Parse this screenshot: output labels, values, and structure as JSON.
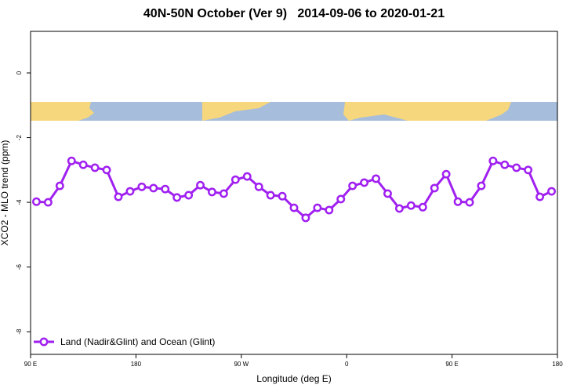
{
  "chart_data": {
    "type": "line",
    "title": "40N-50N October (Ver 9)   2014-09-06 to 2020-01-21",
    "x_label": "Longitude (deg E)",
    "y_label": "XCO2 - MLO trend (ppm)",
    "xlim": [
      90,
      540
    ],
    "ylim": [
      -8.7,
      1.285
    ],
    "xticks": [
      {
        "value": 90,
        "label": "90 E"
      },
      180,
      {
        "value": 270,
        "label": "90 W"
      },
      {
        "value": 360,
        "label": "0"
      },
      {
        "value": 450,
        "label": "90 E"
      },
      {
        "value": 540,
        "label": "180"
      }
    ],
    "yticks": [
      0,
      -2,
      -4,
      -6,
      -8
    ],
    "legend_position": "bottom-left",
    "x": [
      95,
      105,
      115,
      125,
      135,
      145,
      155,
      165,
      175,
      185,
      195,
      205,
      215,
      225,
      235,
      245,
      255,
      265,
      275,
      285,
      295,
      305,
      315,
      325,
      335,
      345,
      355,
      365,
      375,
      385,
      395,
      405,
      415,
      425,
      435,
      445,
      455,
      465,
      475,
      485,
      495,
      505,
      515,
      525,
      535
    ],
    "series": [
      {
        "name": "Land (Nadir&Glint) and Ocean (Glint)",
        "color": "#a020f0",
        "values": [
          -3.98,
          -4.0,
          -3.49,
          -2.72,
          -2.84,
          -2.93,
          -3.0,
          -3.83,
          -3.66,
          -3.52,
          -3.56,
          -3.59,
          -3.85,
          -3.78,
          -3.47,
          -3.68,
          -3.73,
          -3.3,
          -3.2,
          -3.52,
          -3.78,
          -3.81,
          -4.17,
          -4.48,
          -4.17,
          -4.24,
          -3.9,
          -3.49,
          -3.39,
          -3.27,
          -3.73,
          -4.19,
          -4.1,
          -4.15,
          -3.56,
          -3.13,
          -3.98,
          -4.0,
          -3.49,
          -2.72,
          -2.84,
          -2.93,
          -3.0,
          -3.83,
          -3.66
        ]
      }
    ]
  }
}
